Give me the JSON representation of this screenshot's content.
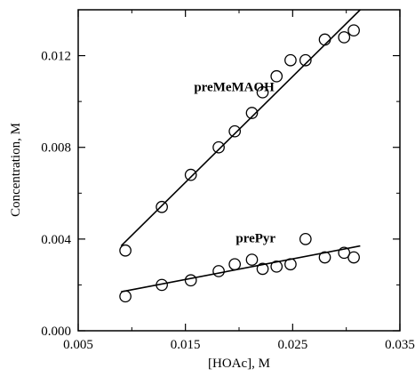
{
  "chart_data": {
    "type": "scatter",
    "title": "",
    "xlabel": "[HOAc], M",
    "ylabel": "Concentration, M",
    "xlim": [
      0.005,
      0.035
    ],
    "ylim": [
      0.0,
      0.014
    ],
    "x_ticks": [
      0.005,
      0.015,
      0.025,
      0.035
    ],
    "x_tick_labels": [
      "0.005",
      "0.015",
      "0.025",
      "0.035"
    ],
    "y_ticks": [
      0.0,
      0.004,
      0.008,
      0.012
    ],
    "y_tick_labels": [
      "0.000",
      "0.004",
      "0.008",
      "0.012"
    ],
    "grid": false,
    "legend": "none",
    "series": [
      {
        "name": "preMeMAOH",
        "marker": "open-circle",
        "x": [
          0.0094,
          0.0128,
          0.0155,
          0.0181,
          0.0196,
          0.0212,
          0.0222,
          0.0235,
          0.0248,
          0.0262,
          0.028,
          0.0298,
          0.0307
        ],
        "y": [
          0.0035,
          0.0054,
          0.0068,
          0.008,
          0.0087,
          0.0095,
          0.0104,
          0.0111,
          0.0118,
          0.0118,
          0.0127,
          0.0128,
          0.0131
        ],
        "fit_line": {
          "x": [
            0.009,
            0.0313
          ],
          "y": [
            0.0037,
            0.014
          ]
        }
      },
      {
        "name": "prePyr",
        "marker": "open-circle",
        "x": [
          0.0094,
          0.0128,
          0.0155,
          0.0181,
          0.0196,
          0.0212,
          0.0222,
          0.0235,
          0.0248,
          0.0262,
          0.028,
          0.0298,
          0.0307
        ],
        "y": [
          0.0015,
          0.002,
          0.0022,
          0.0026,
          0.0029,
          0.0031,
          0.0027,
          0.0028,
          0.0029,
          0.004,
          0.0032,
          0.0034,
          0.0032
        ],
        "fit_line": {
          "x": [
            0.009,
            0.0313
          ],
          "y": [
            0.0017,
            0.0037
          ]
        }
      }
    ],
    "annotations": [
      {
        "text": "preMeMAOH",
        "x": 0.0158,
        "y": 0.01045
      },
      {
        "text": "prePyr",
        "x": 0.0197,
        "y": 0.00385
      }
    ]
  }
}
